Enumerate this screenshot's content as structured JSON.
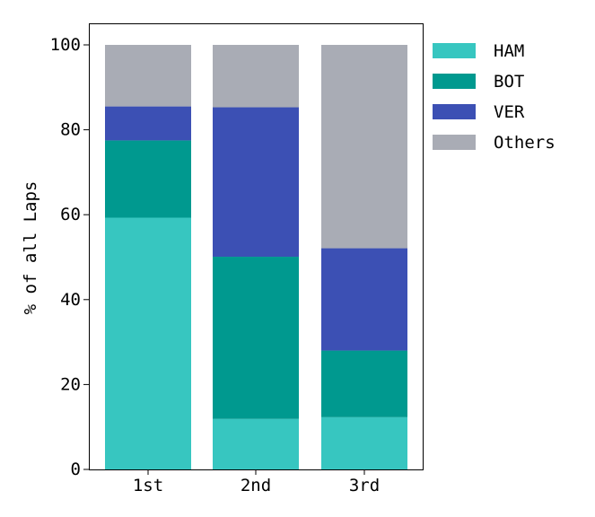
{
  "chart_data": {
    "type": "bar",
    "stacked": true,
    "categories": [
      "1st",
      "2nd",
      "3rd"
    ],
    "series": [
      {
        "name": "HAM",
        "color": "#37c6c0",
        "values": [
          59.3,
          11.9,
          12.3
        ]
      },
      {
        "name": "BOT",
        "color": "#00998f",
        "values": [
          18.2,
          38.2,
          15.7
        ]
      },
      {
        "name": "VER",
        "color": "#3c50b4",
        "values": [
          8.0,
          35.2,
          24.1
        ]
      },
      {
        "name": "Others",
        "color": "#a9acb5",
        "values": [
          14.5,
          14.7,
          47.9
        ]
      }
    ],
    "ylabel": "% of all Laps",
    "xlabel": "",
    "ylim": [
      0,
      100
    ],
    "yticks": [
      0,
      20,
      40,
      60,
      80,
      100
    ],
    "grid": false,
    "legend_position": "right-outside-top"
  }
}
